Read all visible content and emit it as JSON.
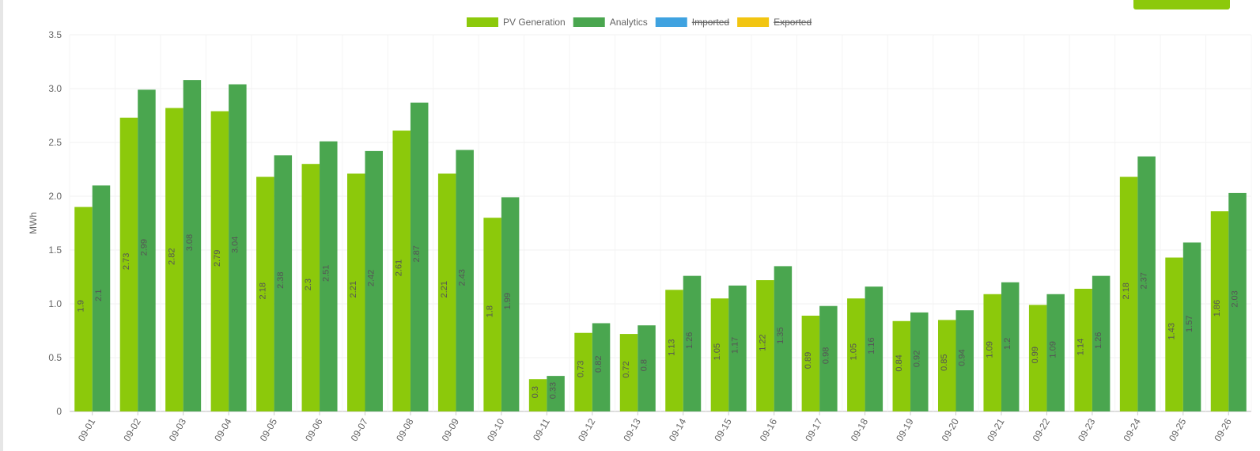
{
  "chart_data": {
    "type": "bar",
    "y_axis_label": "MWh",
    "categories": [
      "09-01",
      "09-02",
      "09-03",
      "09-04",
      "09-05",
      "09-06",
      "09-07",
      "09-08",
      "09-09",
      "09-10",
      "09-11",
      "09-12",
      "09-13",
      "09-14",
      "09-15",
      "09-16",
      "09-17",
      "09-18",
      "09-19",
      "09-20",
      "09-21",
      "09-22",
      "09-23",
      "09-24",
      "09-25",
      "09-26"
    ],
    "series": [
      {
        "name": "PV Generation",
        "color": "#8cc90b",
        "values": [
          1.9,
          2.73,
          2.82,
          2.79,
          2.18,
          2.3,
          2.21,
          2.61,
          2.21,
          1.8,
          0.3,
          0.73,
          0.72,
          1.13,
          1.05,
          1.22,
          0.89,
          1.05,
          0.84,
          0.85,
          1.09,
          0.99,
          1.14,
          2.18,
          1.43,
          1.86
        ]
      },
      {
        "name": "Analytics",
        "color": "#4aa64f",
        "values": [
          2.1,
          2.99,
          3.08,
          3.04,
          2.38,
          2.51,
          2.42,
          2.87,
          2.43,
          1.99,
          0.33,
          0.82,
          0.8,
          1.26,
          1.17,
          1.35,
          0.98,
          1.16,
          0.92,
          0.94,
          1.2,
          1.09,
          1.26,
          2.37,
          1.57,
          2.03
        ]
      },
      {
        "name": "Imported",
        "color": "#3fa2e0",
        "hidden": true
      },
      {
        "name": "Exported",
        "color": "#f2c511",
        "hidden": true
      }
    ],
    "ylim": [
      0,
      3.5
    ],
    "yticks": [
      0,
      0.5,
      {
        "value": 1,
        "label": "1.0"
      },
      1.5,
      {
        "value": 2,
        "label": "2.0"
      },
      2.5,
      {
        "value": 3,
        "label": "3.0"
      },
      3.5
    ],
    "grid": true,
    "legend": "top"
  }
}
